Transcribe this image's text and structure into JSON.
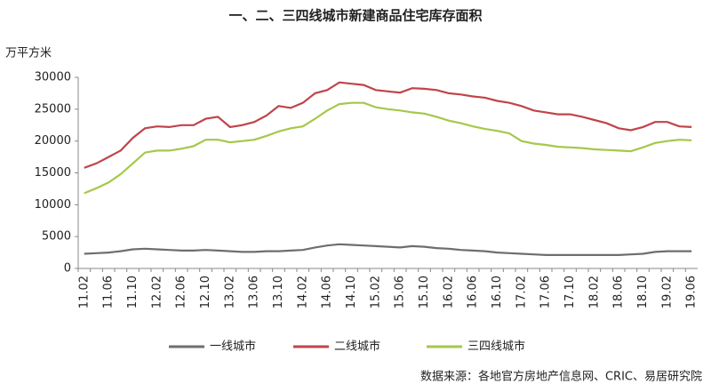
{
  "chart_data": {
    "type": "line",
    "title": "一、二、三四线城市新建商品住宅库存面积",
    "y_label": "万平方米",
    "source": "数据来源：各地官方房地产信息网、CRIC、易居研究院",
    "categories": [
      "11.02",
      null,
      "11.06",
      null,
      "11.10",
      null,
      "12.02",
      null,
      "12.06",
      null,
      "12.10",
      null,
      "13.02",
      null,
      "13.06",
      null,
      "13.10",
      null,
      "14.02",
      null,
      "14.06",
      null,
      "14.10",
      null,
      "15.02",
      null,
      "15.06",
      null,
      "15.10",
      null,
      "16.02",
      null,
      "16.06",
      null,
      "16.10",
      null,
      "17.02",
      null,
      "17.06",
      null,
      "17.10",
      null,
      "18.02",
      null,
      "18.06",
      null,
      "18.10",
      null,
      "19.02",
      null,
      "19.06"
    ],
    "series": [
      {
        "name": "一线城市",
        "color": "#6e6e6e",
        "values": [
          2300,
          2400,
          2500,
          2700,
          3000,
          3100,
          3000,
          2900,
          2800,
          2800,
          2900,
          2800,
          2700,
          2600,
          2600,
          2700,
          2700,
          2800,
          2900,
          3300,
          3600,
          3800,
          3700,
          3600,
          3500,
          3400,
          3300,
          3500,
          3400,
          3200,
          3100,
          2900,
          2800,
          2700,
          2500,
          2400,
          2300,
          2200,
          2100,
          2100,
          2100,
          2100,
          2100,
          2100,
          2100,
          2200,
          2300,
          2600,
          2700,
          2700,
          2700
        ]
      },
      {
        "name": "二线城市",
        "color": "#c0444a",
        "values": [
          15800,
          16500,
          17500,
          18500,
          20500,
          22000,
          22300,
          22200,
          22500,
          22500,
          23500,
          23800,
          22200,
          22500,
          23000,
          24000,
          25500,
          25200,
          26000,
          27500,
          28000,
          29200,
          29000,
          28800,
          28000,
          27800,
          27600,
          28300,
          28200,
          28000,
          27500,
          27300,
          27000,
          26800,
          26300,
          26000,
          25500,
          24800,
          24500,
          24200,
          24200,
          23800,
          23300,
          22800,
          22000,
          21700,
          22200,
          23000,
          23000,
          22300,
          22200
        ]
      },
      {
        "name": "三四线城市",
        "color": "#a5c84a",
        "values": [
          11800,
          12600,
          13500,
          14800,
          16500,
          18200,
          18500,
          18500,
          18800,
          19200,
          20200,
          20200,
          19800,
          20000,
          20200,
          20800,
          21500,
          22000,
          22300,
          23500,
          24800,
          25800,
          26000,
          26000,
          25300,
          25000,
          24800,
          24500,
          24300,
          23800,
          23200,
          22800,
          22300,
          21900,
          21600,
          21200,
          20000,
          19600,
          19400,
          19100,
          19000,
          18900,
          18700,
          18600,
          18500,
          18400,
          19000,
          19700,
          20000,
          20200,
          20100
        ]
      }
    ],
    "ylim": [
      0,
      30000
    ],
    "yticks": [
      0,
      5000,
      10000,
      15000,
      20000,
      25000,
      30000
    ],
    "grid": false,
    "legend": "bottom"
  }
}
